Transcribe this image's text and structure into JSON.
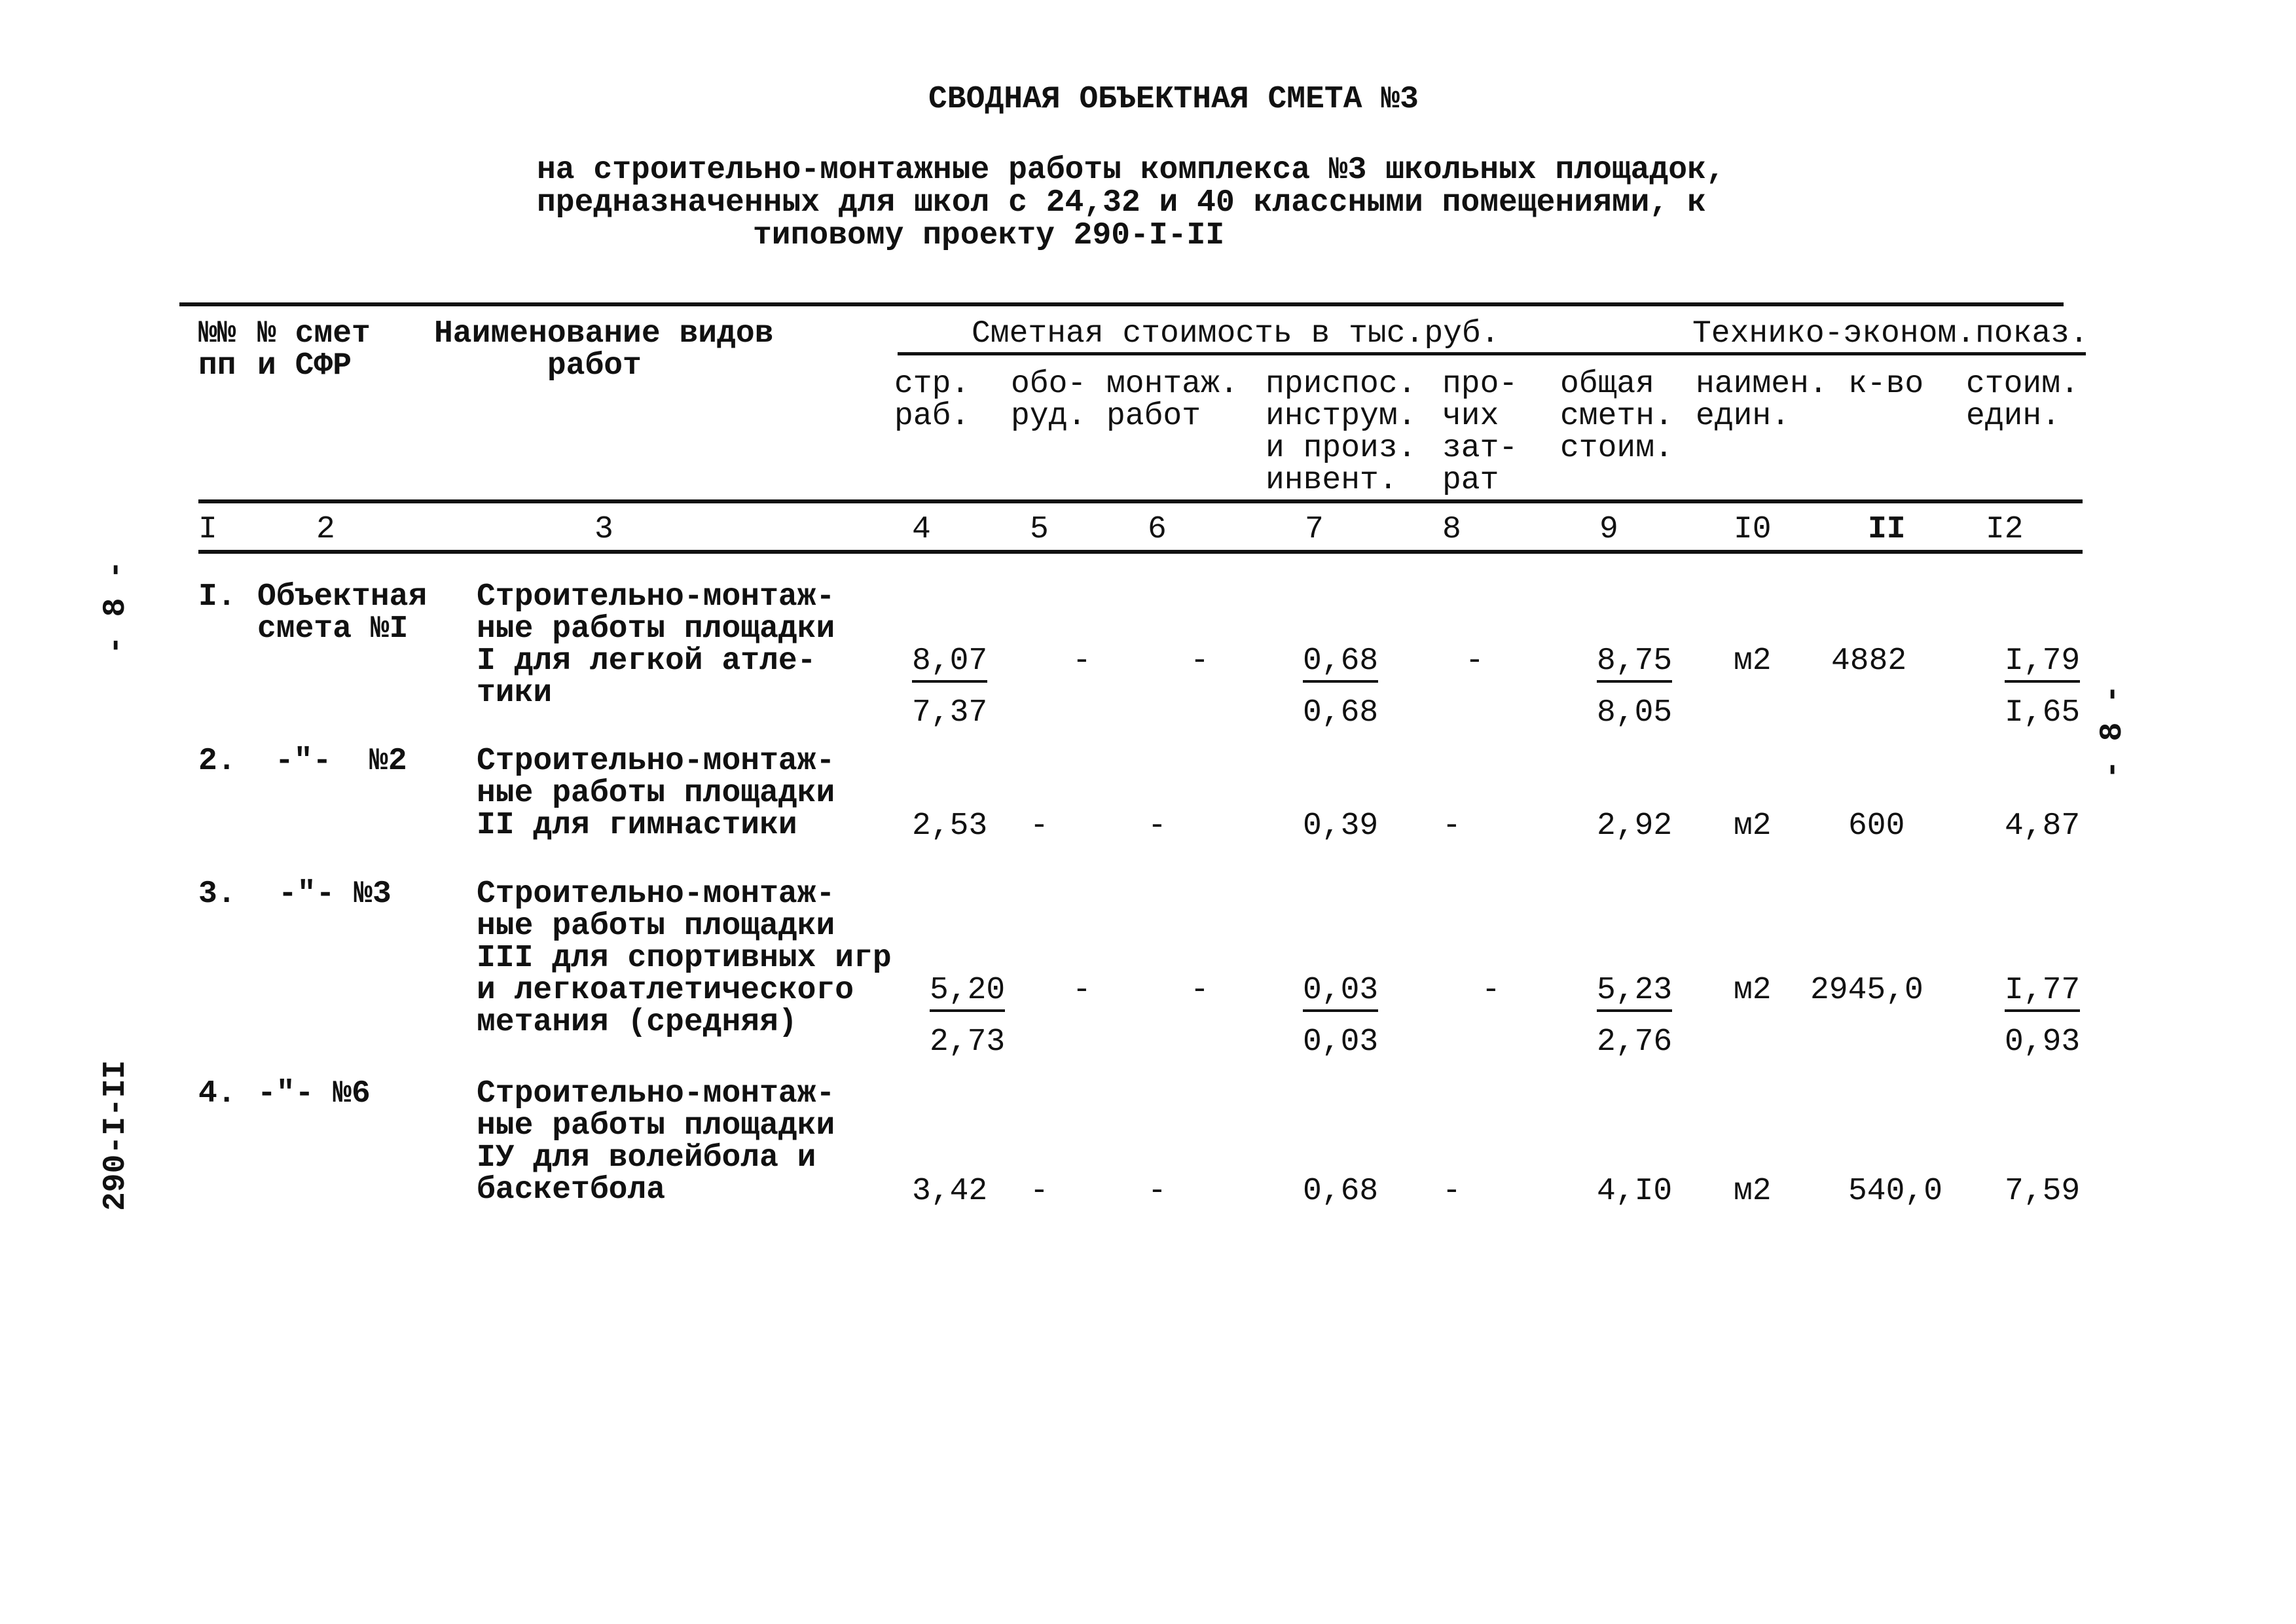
{
  "title": "СВОДНАЯ ОБЪЕКТНАЯ СМЕТА №3",
  "subtitle": [
    "на строительно-монтажные работы комплекса №3 школьных площадок,",
    "предназначенных для школ с 24,32 и 40 классными помещениями, к",
    "типовому проекту 290-I-II"
  ],
  "margin": {
    "page_left": "- 8 -",
    "page_right": "- 8 -",
    "project_code": "290-I-II"
  },
  "header": {
    "col1": "№№\nпп",
    "col2": "№ смет\nи СФР",
    "col3": "Наименование видов\n      работ",
    "group_cost": "Сметная стоимость в тыс.руб.",
    "group_tech": "Технико-эконом.показ.",
    "col4": "стр.\nраб.",
    "col5": "обо-\nруд.",
    "col6": "монтаж.\nработ",
    "col7": "приспос.\nинструм.\nи произ.\nинвент.",
    "col8": "про-\nчих\nзат-\nрат",
    "col9": "общая\nсметн.\nстоим.",
    "col10": "наимен.\nедин.",
    "col11": "к-во",
    "col12": "стоим.\nедин.",
    "numbers": [
      "I",
      "2",
      "3",
      "4",
      "5",
      "6",
      "7",
      "8",
      "9",
      "I0",
      "II",
      "I2"
    ]
  },
  "rows": [
    {
      "no": "I.",
      "smeta": "Объектная\nсмета №I",
      "name": "Строительно-монтаж-\nные работы площадки\nI для легкой атле-\nтики",
      "str": {
        "num": "8,07",
        "den": "7,37"
      },
      "obor": "-",
      "mont": "-",
      "prisp": {
        "num": "0,68",
        "den": "0,68"
      },
      "proch": "-",
      "total": {
        "num": "8,75",
        "den": "8,05"
      },
      "unit": "м2",
      "qty": "4882",
      "unit_cost": {
        "num": "I,79",
        "den": "I,65"
      }
    },
    {
      "no": "2.",
      "smeta": "-\"-  №2",
      "name": "Строительно-монтаж-\nные работы площадки\nII для гимнастики",
      "str": "2,53",
      "obor": "-",
      "mont": "-",
      "prisp": "0,39",
      "proch": "-",
      "total": "2,92",
      "unit": "м2",
      "qty": "600",
      "unit_cost": "4,87"
    },
    {
      "no": "3.",
      "smeta": "-\"- №3",
      "name": "Строительно-монтаж-\nные работы площадки\nIII для спортивных игр\nи легкоатлетического\nметания (средняя)",
      "str": {
        "num": "5,20",
        "den": "2,73"
      },
      "obor": "-",
      "mont": "-",
      "prisp": {
        "num": "0,03",
        "den": "0,03"
      },
      "proch": "-",
      "total": {
        "num": "5,23",
        "den": "2,76"
      },
      "unit": "м2",
      "qty": "2945,0",
      "unit_cost": {
        "num": "I,77",
        "den": "0,93"
      }
    },
    {
      "no": "4.",
      "smeta": "-\"- №6",
      "name": "Строительно-монтаж-\nные работы площадки\nIУ для волейбола и\nбаскетбола",
      "str": "3,42",
      "obor": "-",
      "mont": "-",
      "prisp": "0,68",
      "proch": "-",
      "total": "4,I0",
      "unit": "м2",
      "qty": "540,0",
      "unit_cost": "7,59"
    }
  ]
}
